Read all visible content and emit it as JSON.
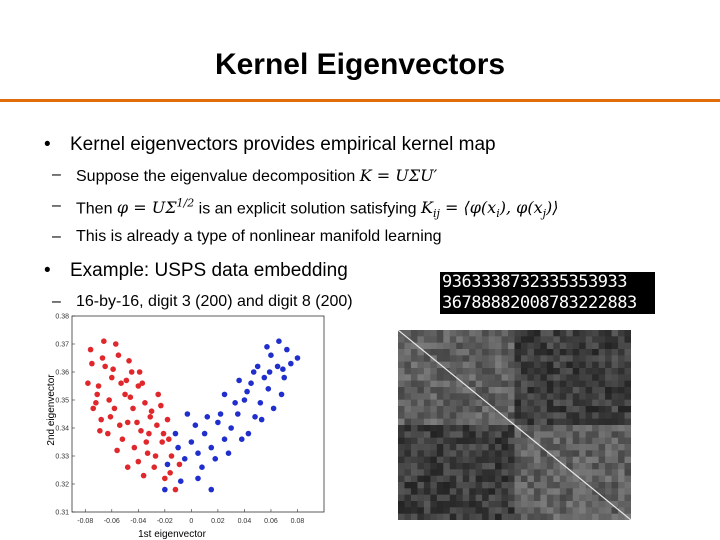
{
  "slide": {
    "title": "Kernel Eigenvectors",
    "bullets": [
      {
        "text": "Kernel eigenvectors provides empirical kernel map",
        "sub": [
          {
            "text": "Suppose the eigenvalue decomposition",
            "math": "K = UΣU′"
          },
          {
            "text": "Then",
            "math": "φ = UΣ1/2",
            "text2": "is an explicit solution satisfying",
            "math2": "Kij = ⟨φ(xi), φ(xj)⟩"
          },
          {
            "text": "This is already a type of nonlinear manifold learning"
          }
        ]
      },
      {
        "text": "Example: USPS data embedding",
        "sub": [
          {
            "text": "16-by-16, digit 3 (200) and digit 8 (200)"
          }
        ]
      }
    ],
    "digit_strip": {
      "row1": "9363338732335353933",
      "row2": "36788882008783222883"
    },
    "colors": {
      "accent_rule": "#e36c0a",
      "digit3": "#e0282c",
      "digit8": "#1f2ecc"
    }
  },
  "chart_data": {
    "type": "scatter",
    "xlabel": "1st eigenvector",
    "ylabel": "2nd eigenvector",
    "xlim": [
      -0.09,
      0.1
    ],
    "ylim": [
      0.31,
      0.38
    ],
    "xticks": [
      "-0.08",
      "-0.06",
      "-0.04",
      "-0.02",
      "0",
      "0.02",
      "0.04",
      "0.06",
      "0.08"
    ],
    "yticks": [
      "0.31",
      "0.32",
      "0.33",
      "0.34",
      "0.35",
      "0.36",
      "0.37",
      "0.38"
    ],
    "series": [
      {
        "color": "#e0282c",
        "points": [
          [
            -0.075,
            0.363
          ],
          [
            -0.07,
            0.355
          ],
          [
            -0.072,
            0.349
          ],
          [
            -0.065,
            0.362
          ],
          [
            -0.06,
            0.358
          ],
          [
            -0.068,
            0.343
          ],
          [
            -0.055,
            0.366
          ],
          [
            -0.05,
            0.352
          ],
          [
            -0.058,
            0.347
          ],
          [
            -0.045,
            0.36
          ],
          [
            -0.063,
            0.338
          ],
          [
            -0.048,
            0.342
          ],
          [
            -0.04,
            0.355
          ],
          [
            -0.035,
            0.349
          ],
          [
            -0.052,
            0.336
          ],
          [
            -0.043,
            0.333
          ],
          [
            -0.038,
            0.339
          ],
          [
            -0.03,
            0.346
          ],
          [
            -0.025,
            0.352
          ],
          [
            -0.033,
            0.331
          ],
          [
            -0.028,
            0.326
          ],
          [
            -0.022,
            0.335
          ],
          [
            -0.018,
            0.343
          ],
          [
            -0.02,
            0.322
          ],
          [
            -0.015,
            0.33
          ],
          [
            -0.012,
            0.318
          ],
          [
            -0.076,
            0.368
          ],
          [
            -0.066,
            0.371
          ],
          [
            -0.057,
            0.37
          ],
          [
            -0.047,
            0.364
          ],
          [
            -0.071,
            0.352
          ],
          [
            -0.061,
            0.344
          ],
          [
            -0.054,
            0.341
          ],
          [
            -0.044,
            0.347
          ],
          [
            -0.037,
            0.356
          ],
          [
            -0.032,
            0.338
          ],
          [
            -0.026,
            0.341
          ],
          [
            -0.04,
            0.328
          ],
          [
            -0.048,
            0.326
          ],
          [
            -0.009,
            0.327
          ],
          [
            -0.078,
            0.356
          ],
          [
            -0.074,
            0.347
          ],
          [
            -0.062,
            0.35
          ],
          [
            -0.053,
            0.356
          ],
          [
            -0.046,
            0.351
          ],
          [
            -0.041,
            0.342
          ],
          [
            -0.034,
            0.335
          ],
          [
            -0.027,
            0.33
          ],
          [
            -0.021,
            0.338
          ],
          [
            -0.016,
            0.324
          ],
          [
            -0.067,
            0.365
          ],
          [
            -0.059,
            0.361
          ],
          [
            -0.049,
            0.357
          ],
          [
            -0.039,
            0.36
          ],
          [
            -0.031,
            0.344
          ],
          [
            -0.023,
            0.348
          ],
          [
            -0.017,
            0.336
          ],
          [
            -0.069,
            0.339
          ],
          [
            -0.056,
            0.332
          ],
          [
            -0.036,
            0.323
          ]
        ]
      },
      {
        "color": "#1f2ecc",
        "points": [
          [
            0.06,
            0.366
          ],
          [
            0.065,
            0.362
          ],
          [
            0.055,
            0.358
          ],
          [
            0.07,
            0.358
          ],
          [
            0.05,
            0.362
          ],
          [
            0.058,
            0.354
          ],
          [
            0.045,
            0.356
          ],
          [
            0.068,
            0.352
          ],
          [
            0.052,
            0.349
          ],
          [
            0.075,
            0.363
          ],
          [
            0.062,
            0.347
          ],
          [
            0.04,
            0.35
          ],
          [
            0.048,
            0.344
          ],
          [
            0.035,
            0.345
          ],
          [
            0.03,
            0.34
          ],
          [
            0.025,
            0.336
          ],
          [
            0.02,
            0.342
          ],
          [
            0.038,
            0.336
          ],
          [
            0.015,
            0.333
          ],
          [
            0.01,
            0.338
          ],
          [
            0.005,
            0.331
          ],
          [
            0.0,
            0.335
          ],
          [
            -0.005,
            0.329
          ],
          [
            0.008,
            0.326
          ],
          [
            0.018,
            0.329
          ],
          [
            -0.01,
            0.333
          ],
          [
            0.028,
            0.331
          ],
          [
            0.043,
            0.338
          ],
          [
            0.072,
            0.368
          ],
          [
            0.08,
            0.365
          ],
          [
            0.057,
            0.369
          ],
          [
            0.066,
            0.371
          ],
          [
            0.053,
            0.343
          ],
          [
            0.033,
            0.349
          ],
          [
            0.022,
            0.345
          ],
          [
            0.012,
            0.344
          ],
          [
            0.003,
            0.341
          ],
          [
            -0.003,
            0.345
          ],
          [
            -0.012,
            0.338
          ],
          [
            -0.018,
            0.327
          ],
          [
            0.047,
            0.36
          ],
          [
            0.059,
            0.36
          ],
          [
            0.069,
            0.361
          ],
          [
            0.042,
            0.353
          ],
          [
            0.036,
            0.357
          ],
          [
            0.025,
            0.352
          ],
          [
            -0.008,
            0.321
          ],
          [
            0.005,
            0.322
          ],
          [
            0.015,
            0.318
          ],
          [
            -0.02,
            0.318
          ]
        ]
      }
    ]
  }
}
